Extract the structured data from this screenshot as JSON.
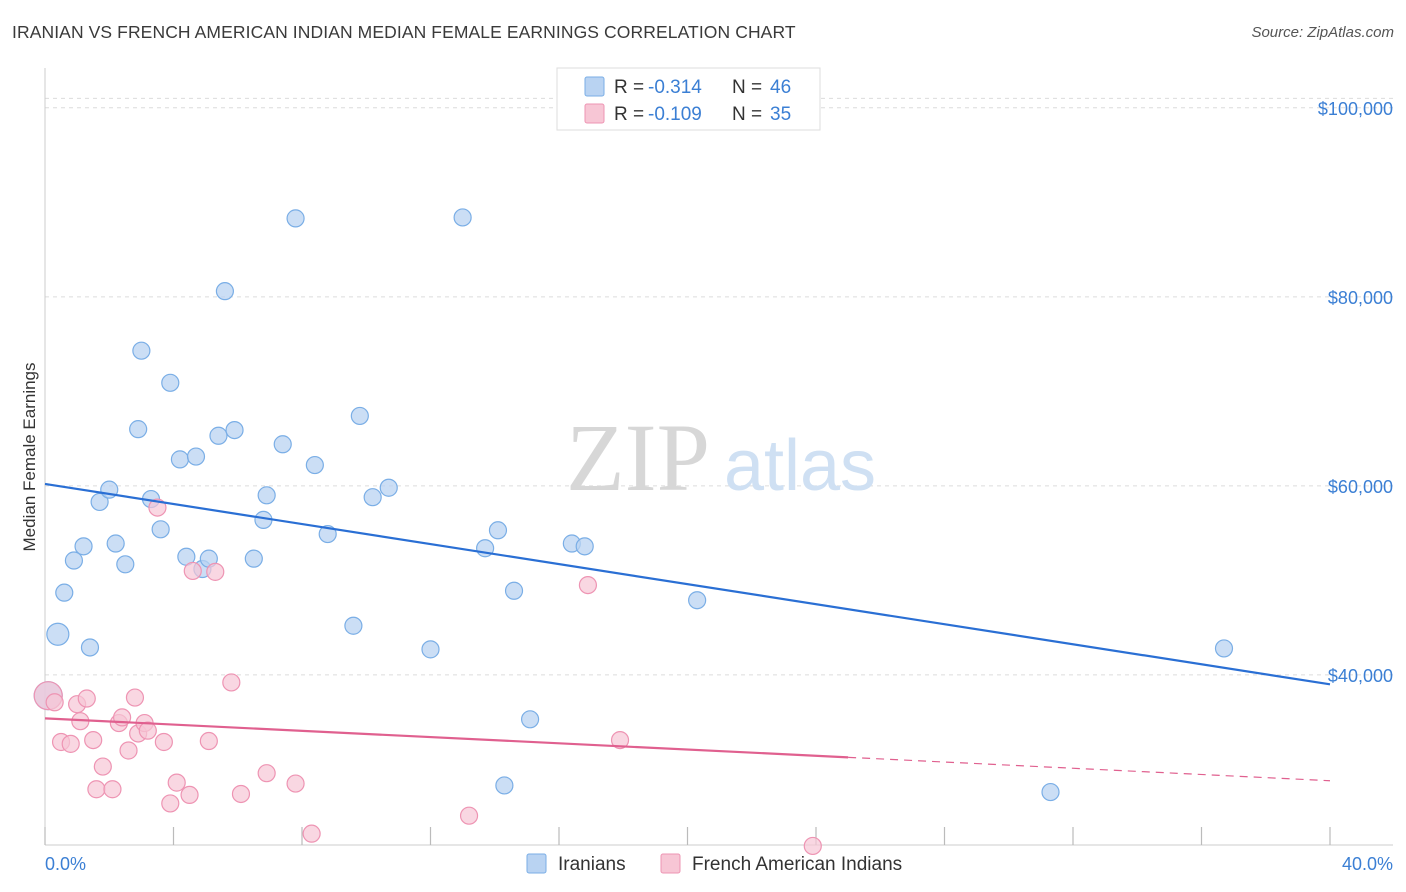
{
  "title": "IRANIAN VS FRENCH AMERICAN INDIAN MEDIAN FEMALE EARNINGS CORRELATION CHART",
  "source": "Source: ZipAtlas.com",
  "watermark": {
    "zip": "ZIP",
    "atlas": "atlas"
  },
  "legend": {
    "r_label": "R =",
    "n_label": "N =",
    "rows": [
      {
        "r": "-0.314",
        "n": "46"
      },
      {
        "r": "-0.109",
        "n": "35"
      }
    ]
  },
  "colors": {
    "iranians_fill": "#b9d3f2",
    "iranians_stroke": "#7aaee6",
    "iranians_line": "#2a6fd4",
    "french_fill": "#f7c6d5",
    "french_stroke": "#ee94b3",
    "french_line": "#e0608f",
    "tick_color": "#3b7fd4"
  },
  "chart_data": {
    "type": "scatter",
    "title": "IRANIAN VS FRENCH AMERICAN INDIAN MEDIAN FEMALE EARNINGS CORRELATION CHART",
    "xlabel": "",
    "ylabel": "Median Female Earnings",
    "xlim": [
      0,
      40
    ],
    "ylim": [
      22000,
      104000
    ],
    "x_tick_labels": [
      "0.0%",
      "40.0%"
    ],
    "y_ticks": [
      40000,
      60000,
      80000,
      100000
    ],
    "y_tick_labels": [
      "$40,000",
      "$60,000",
      "$80,000",
      "$100,000"
    ],
    "grid": true,
    "legend_position": "top-center",
    "series": [
      {
        "name": "Iranians",
        "r": -0.314,
        "n": 46,
        "trend": {
          "x0": 0,
          "y0": 60200,
          "x1": 40,
          "y1": 39000,
          "dashed_from": null
        },
        "points": [
          [
            0.1,
            37800
          ],
          [
            0.4,
            44300
          ],
          [
            0.6,
            48700
          ],
          [
            0.9,
            52100
          ],
          [
            1.2,
            53600
          ],
          [
            1.4,
            42900
          ],
          [
            1.7,
            58300
          ],
          [
            2.0,
            59600
          ],
          [
            2.2,
            53900
          ],
          [
            2.5,
            51700
          ],
          [
            3.0,
            74300
          ],
          [
            2.9,
            66000
          ],
          [
            3.3,
            58600
          ],
          [
            3.6,
            55400
          ],
          [
            3.9,
            70900
          ],
          [
            4.2,
            62800
          ],
          [
            4.4,
            52500
          ],
          [
            4.7,
            63100
          ],
          [
            4.9,
            51200
          ],
          [
            5.1,
            52300
          ],
          [
            5.4,
            65300
          ],
          [
            5.6,
            80600
          ],
          [
            5.9,
            65900
          ],
          [
            6.5,
            52300
          ],
          [
            6.8,
            56400
          ],
          [
            6.9,
            59000
          ],
          [
            7.4,
            64400
          ],
          [
            7.8,
            88300
          ],
          [
            8.4,
            62200
          ],
          [
            8.8,
            54900
          ],
          [
            9.6,
            45200
          ],
          [
            9.8,
            67400
          ],
          [
            10.2,
            58800
          ],
          [
            10.7,
            59800
          ],
          [
            12.0,
            42700
          ],
          [
            13.0,
            88400
          ],
          [
            13.7,
            53400
          ],
          [
            14.1,
            55300
          ],
          [
            14.6,
            48900
          ],
          [
            15.1,
            35300
          ],
          [
            14.3,
            28300
          ],
          [
            16.4,
            53900
          ],
          [
            16.8,
            53600
          ],
          [
            20.3,
            47900
          ],
          [
            31.3,
            27600
          ],
          [
            36.7,
            42800
          ]
        ]
      },
      {
        "name": "French American Indians",
        "r": -0.109,
        "n": 35,
        "trend": {
          "x0": 0,
          "y0": 35400,
          "x1": 40,
          "y1": 28800,
          "dashed_from": 25.0
        },
        "points": [
          [
            0.1,
            37800
          ],
          [
            0.3,
            37100
          ],
          [
            0.5,
            32900
          ],
          [
            0.8,
            32700
          ],
          [
            1.0,
            36900
          ],
          [
            1.1,
            35100
          ],
          [
            1.3,
            37500
          ],
          [
            1.5,
            33100
          ],
          [
            1.6,
            27900
          ],
          [
            1.8,
            30300
          ],
          [
            2.1,
            27900
          ],
          [
            2.3,
            34900
          ],
          [
            2.4,
            35500
          ],
          [
            2.6,
            32000
          ],
          [
            2.8,
            37600
          ],
          [
            2.9,
            33800
          ],
          [
            3.1,
            34900
          ],
          [
            3.2,
            34100
          ],
          [
            3.5,
            57700
          ],
          [
            3.7,
            32900
          ],
          [
            3.9,
            26400
          ],
          [
            4.1,
            28600
          ],
          [
            4.5,
            27300
          ],
          [
            4.6,
            51000
          ],
          [
            5.1,
            33000
          ],
          [
            5.3,
            50900
          ],
          [
            5.8,
            39200
          ],
          [
            6.1,
            27400
          ],
          [
            6.9,
            29600
          ],
          [
            7.8,
            28500
          ],
          [
            8.3,
            23200
          ],
          [
            13.2,
            25100
          ],
          [
            16.9,
            49500
          ],
          [
            17.9,
            33100
          ],
          [
            23.9,
            21900
          ]
        ]
      }
    ]
  },
  "bottom_legend": [
    {
      "label": "Iranians"
    },
    {
      "label": "French American Indians"
    }
  ]
}
